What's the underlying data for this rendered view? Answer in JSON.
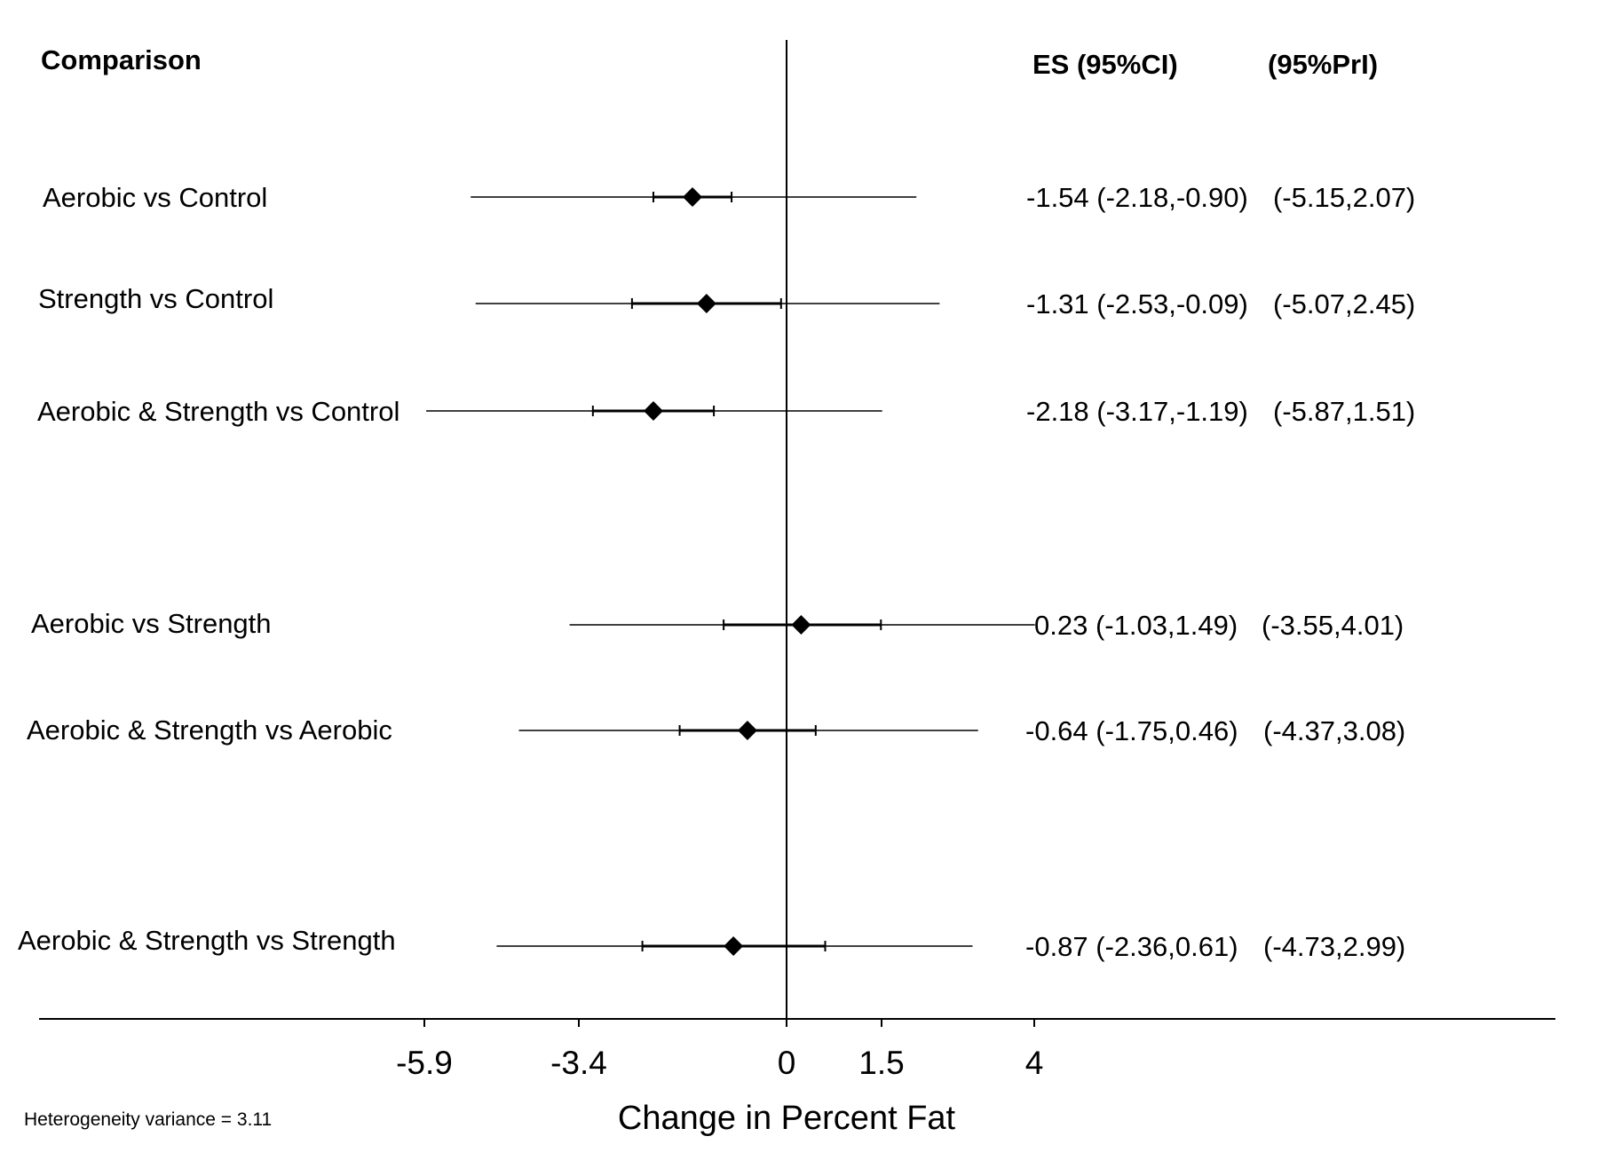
{
  "chart_data": {
    "type": "forest",
    "xlabel": "Change in Percent Fat",
    "header": {
      "comparison": "Comparison",
      "es_ci": "ES (95%CI)",
      "pri": "(95%PrI)"
    },
    "x_ticks": [
      -5.9,
      -3.4,
      0,
      1.5,
      4
    ],
    "x_tick_labels": [
      "-5.9",
      "-3.4",
      "0",
      "1.5",
      "4"
    ],
    "null_line": 0,
    "note": "Heterogeneity variance = 3.11",
    "rows": [
      {
        "label": "Aerobic vs Control",
        "es": -1.54,
        "ci": [
          -2.18,
          -0.9
        ],
        "pri": [
          -5.15,
          2.07
        ],
        "es_text": "-1.54 (-2.18,-0.90)",
        "pri_text": "(-5.15,2.07)"
      },
      {
        "label": "Strength vs Control",
        "es": -1.31,
        "ci": [
          -2.53,
          -0.09
        ],
        "pri": [
          -5.07,
          2.45
        ],
        "es_text": "-1.31 (-2.53,-0.09)",
        "pri_text": "(-5.07,2.45)"
      },
      {
        "label": "Aerobic & Strength vs Control",
        "es": -2.18,
        "ci": [
          -3.17,
          -1.19
        ],
        "pri": [
          -5.87,
          1.51
        ],
        "es_text": "-2.18 (-3.17,-1.19)",
        "pri_text": "(-5.87,1.51)"
      },
      {
        "label": "Aerobic vs Strength",
        "es": 0.23,
        "ci": [
          -1.03,
          1.49
        ],
        "pri": [
          -3.55,
          4.01
        ],
        "es_text": "0.23 (-1.03,1.49)",
        "pri_text": "(-3.55,4.01)"
      },
      {
        "label": "Aerobic & Strength vs Aerobic",
        "es": -0.64,
        "ci": [
          -1.75,
          0.46
        ],
        "pri": [
          -4.37,
          3.08
        ],
        "es_text": "-0.64 (-1.75,0.46)",
        "pri_text": "(-4.37,3.08)"
      },
      {
        "label": "Aerobic & Strength vs Strength",
        "es": -0.87,
        "ci": [
          -2.36,
          0.61
        ],
        "pri": [
          -4.73,
          2.99
        ],
        "es_text": "-0.87 (-2.36,0.61)",
        "pri_text": "(-4.73,2.99)"
      }
    ]
  }
}
